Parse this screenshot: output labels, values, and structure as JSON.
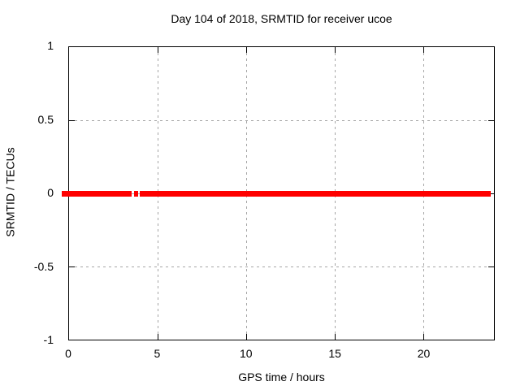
{
  "window": {
    "background": "#ffffff"
  },
  "chart_data": {
    "type": "line",
    "title": "Day 104 of 2018, SRMTID for receiver ucoe",
    "xlabel": "GPS time / hours",
    "ylabel": "SRMTID / TECUs",
    "xlim": [
      0,
      24
    ],
    "ylim": [
      -1,
      1
    ],
    "grid": true,
    "legend": "none",
    "xticks": [
      {
        "v": 0,
        "label": "0"
      },
      {
        "v": 5,
        "label": "5"
      },
      {
        "v": 10,
        "label": "10"
      },
      {
        "v": 15,
        "label": "15"
      },
      {
        "v": 20,
        "label": "20"
      }
    ],
    "yticks": [
      {
        "v": -1,
        "label": "-1"
      },
      {
        "v": -0.5,
        "label": "-0.5"
      },
      {
        "v": 0,
        "label": "0"
      },
      {
        "v": 0.5,
        "label": "0.5"
      },
      {
        "v": 1,
        "label": "1"
      }
    ],
    "series": [
      {
        "name": "SRMTID",
        "color": "#ff0000",
        "y_value": 0,
        "style": "thick horizontal line at y=0 with small data gap near x=3.6-3.95",
        "segments_hours": [
          {
            "x_start": 0,
            "x_end": 3.55
          },
          {
            "x_start": 3.65,
            "x_end": 3.88
          },
          {
            "x_start": 3.97,
            "x_end": 23.8
          }
        ]
      }
    ],
    "colors": {
      "line": "#ff0000",
      "grid": "#a6a6a6",
      "border": "#000000",
      "text": "#000000",
      "background": "#ffffff"
    }
  }
}
